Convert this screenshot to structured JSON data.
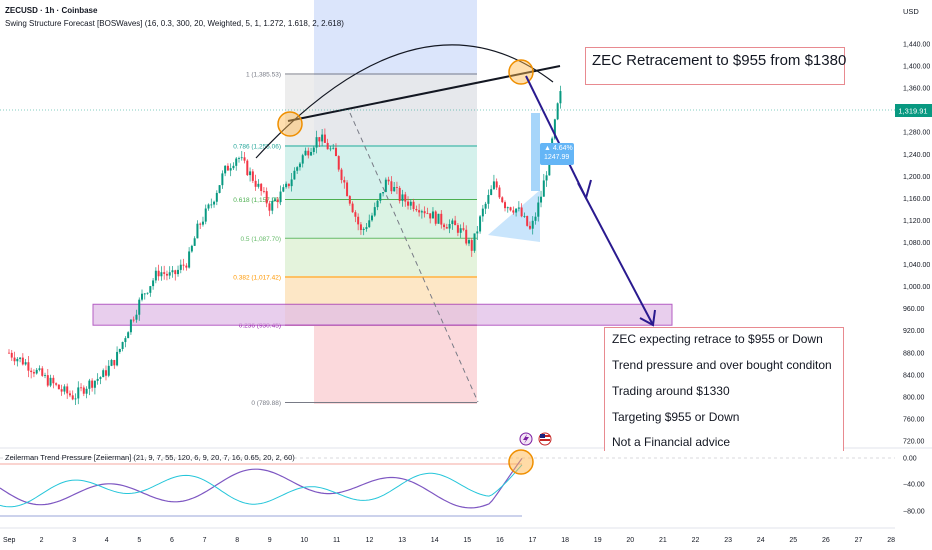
{
  "header": {
    "title": "ZECUSD · 1h · Coinbase",
    "indicator": "Swing Structure Forecast [BOSWaves] (16, 0.3, 300, 20, Weighted, 5, 1, 1.272, 1.618, 2, 2.618)",
    "currency": "USD"
  },
  "lower_indicator": {
    "label": "Zeilerman Trend Pressure [Zeiierman] (21, 9, 7, 55, 120, 6, 9, 20, 7, 16, 0.65, 20, 2, 60)",
    "ticks": [
      "0.00",
      "−40.00",
      "−80.00"
    ]
  },
  "callouts": {
    "title": "ZEC Retracement to $955 from $1380",
    "lines": [
      "ZEC expecting retrace to $955 or Down",
      "Trend pressure and over bought conditon",
      "Trading around $1330",
      "Targeting $955 or Down",
      "Not a Financial advice"
    ]
  },
  "forecast_badge": {
    "pct": "▲ 4.64%",
    "price": "1247.99"
  },
  "colors": {
    "up_candle": "#089981",
    "down_candle": "#f23645",
    "arrow": "#2a1a8f",
    "zone_fill": "#e1bee7",
    "zone_border": "#9c27b0",
    "price_tag": "#089981"
  },
  "chart_data": {
    "type": "candlestick",
    "ylim": [
      720,
      1470
    ],
    "price_ticks": [
      1440,
      1400,
      1360,
      1320,
      1280,
      1240,
      1200,
      1160,
      1120,
      1080,
      1040,
      1000,
      960,
      920,
      880,
      840,
      800,
      760,
      720
    ],
    "price_tick_labels": [
      "1,440.00",
      "1,400.00",
      "1,360.00",
      "1,320.00",
      "1,280.00",
      "1,240.00",
      "1,200.00",
      "1,160.00",
      "1,120.00",
      "1,080.00",
      "1,040.00",
      "1,000.00",
      "960.00",
      "920.00",
      "880.00",
      "840.00",
      "800.00",
      "760.00",
      "720.00"
    ],
    "x_ticks": [
      "Sep",
      "2",
      "3",
      "4",
      "5",
      "6",
      "7",
      "8",
      "9",
      "10",
      "11",
      "12",
      "13",
      "14",
      "15",
      "16",
      "17",
      "18",
      "19",
      "20",
      "21",
      "22",
      "23",
      "24",
      "25",
      "26",
      "27",
      "28"
    ],
    "current_price": 1319.91,
    "current_price_label": "1,319.91",
    "fib_levels": [
      {
        "ratio": "1",
        "price": 1385.53,
        "label": "1 (1,385.53)"
      },
      {
        "ratio": "0.786",
        "price": 1255.06,
        "label": "0.786 (1,255.06)"
      },
      {
        "ratio": "0.618",
        "price": 1157.99,
        "label": "0.618 (1,157.99)"
      },
      {
        "ratio": "0.5",
        "price": 1087.7,
        "label": "0.5 (1,087.70)"
      },
      {
        "ratio": "0.382",
        "price": 1017.42,
        "label": "0.382 (1,017.42)"
      },
      {
        "ratio": "0.236",
        "price": 930.45,
        "label": "0.236 (930.45)"
      },
      {
        "ratio": "0",
        "price": 789.88,
        "label": "0 (789.88)"
      }
    ],
    "support_zone": [
      930,
      968
    ],
    "path": [
      {
        "day": 0.0,
        "price": 880
      },
      {
        "day": 0.5,
        "price": 862
      },
      {
        "day": 1.0,
        "price": 838
      },
      {
        "day": 1.6,
        "price": 812
      },
      {
        "day": 2.0,
        "price": 800
      },
      {
        "day": 2.4,
        "price": 822
      },
      {
        "day": 2.9,
        "price": 840
      },
      {
        "day": 3.3,
        "price": 872
      },
      {
        "day": 3.7,
        "price": 932
      },
      {
        "day": 4.1,
        "price": 985
      },
      {
        "day": 4.6,
        "price": 1028
      },
      {
        "day": 5.0,
        "price": 1018
      },
      {
        "day": 5.5,
        "price": 1048
      },
      {
        "day": 5.8,
        "price": 1108
      },
      {
        "day": 6.2,
        "price": 1150
      },
      {
        "day": 6.6,
        "price": 1208
      },
      {
        "day": 7.0,
        "price": 1238
      },
      {
        "day": 7.5,
        "price": 1195
      },
      {
        "day": 8.0,
        "price": 1145
      },
      {
        "day": 8.5,
        "price": 1178
      },
      {
        "day": 9.0,
        "price": 1236
      },
      {
        "day": 9.5,
        "price": 1272
      },
      {
        "day": 10.0,
        "price": 1238
      },
      {
        "day": 10.4,
        "price": 1168
      },
      {
        "day": 10.8,
        "price": 1098
      },
      {
        "day": 11.2,
        "price": 1135
      },
      {
        "day": 11.6,
        "price": 1195
      },
      {
        "day": 12.0,
        "price": 1160
      },
      {
        "day": 12.6,
        "price": 1145
      },
      {
        "day": 13.2,
        "price": 1120
      },
      {
        "day": 13.8,
        "price": 1105
      },
      {
        "day": 14.2,
        "price": 1070
      },
      {
        "day": 14.5,
        "price": 1132
      },
      {
        "day": 14.9,
        "price": 1188
      },
      {
        "day": 15.2,
        "price": 1150
      },
      {
        "day": 15.6,
        "price": 1140
      },
      {
        "day": 16.0,
        "price": 1100
      },
      {
        "day": 16.3,
        "price": 1160
      },
      {
        "day": 16.6,
        "price": 1240
      },
      {
        "day": 16.9,
        "price": 1352
      },
      {
        "day": 17.0,
        "price": 1319
      }
    ]
  }
}
